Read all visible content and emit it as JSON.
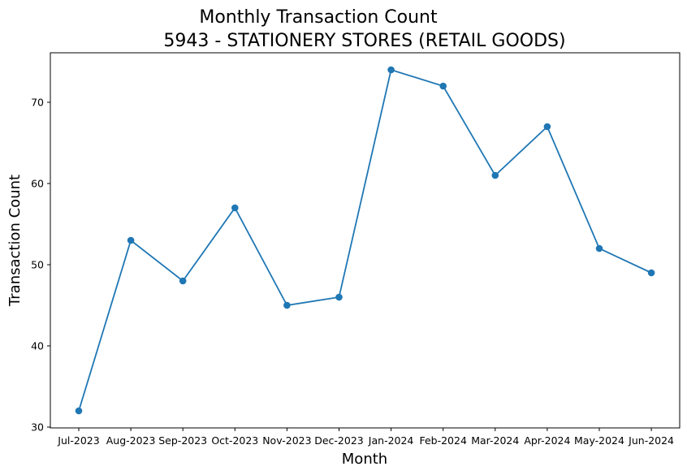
{
  "chart_data": {
    "type": "line",
    "title": "Monthly Transaction Count",
    "subtitle": "5943 - STATIONERY STORES (RETAIL GOODS)",
    "xlabel": "Month",
    "ylabel": "Transaction Count",
    "categories": [
      "Jul-2023",
      "Aug-2023",
      "Sep-2023",
      "Oct-2023",
      "Nov-2023",
      "Dec-2023",
      "Jan-2024",
      "Feb-2024",
      "Mar-2024",
      "Apr-2024",
      "May-2024",
      "Jun-2024"
    ],
    "series": [
      {
        "values": [
          32,
          53,
          48,
          57,
          45,
          46,
          74,
          72,
          61,
          67,
          52,
          49
        ]
      }
    ],
    "yticks": [
      30,
      40,
      50,
      60,
      70
    ],
    "ylim": [
      29.9,
      76.1
    ],
    "grid": false,
    "legend": "none",
    "color": "#1f77b4"
  }
}
